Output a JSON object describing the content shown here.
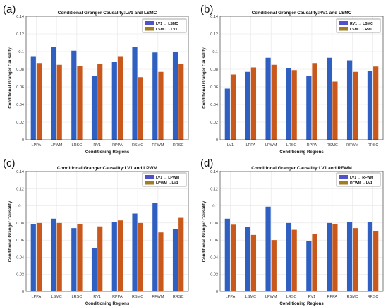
{
  "figure": {
    "colors": {
      "series1": "#2f5fc0",
      "series2": "#c8581c",
      "series1_legend": "#5151c9",
      "series2_legend": "#9e7d24",
      "grid": "#e6e6e6",
      "axis": "#222222"
    }
  },
  "chart_data": [
    {
      "id": "a",
      "panel_label": "(a)",
      "type": "bar",
      "title": "Conditional Granger Causality:LV1 and LSMC",
      "xlabel": "Conditioning Regions",
      "ylabel": "Conditional Granger Causality",
      "ylim": [
        0,
        0.14
      ],
      "yticks": [
        "0",
        "0.02",
        "0.04",
        "0.06",
        "0.08",
        "0.1",
        "0.12",
        "0.14"
      ],
      "grid": true,
      "legend_position": "top-right",
      "categories": [
        "LPPA",
        "LPWM",
        "LRSC",
        "RV1",
        "RPPA",
        "RSMC",
        "RFWM",
        "RRSC"
      ],
      "series": [
        {
          "name": "LV1 → LSMC",
          "values": [
            0.094,
            0.105,
            0.101,
            0.072,
            0.088,
            0.105,
            0.099,
            0.1
          ]
        },
        {
          "name": "LSMC →LV1",
          "values": [
            0.087,
            0.085,
            0.084,
            0.086,
            0.094,
            0.071,
            0.077,
            0.086
          ]
        }
      ]
    },
    {
      "id": "b",
      "panel_label": "(b)",
      "type": "bar",
      "title": "Conditional Granger Causality:RV1 and LSMC",
      "xlabel": "Conditioning Regions",
      "ylabel": "Conditional Granger Causality",
      "ylim": [
        0,
        0.14
      ],
      "yticks": [
        "0",
        "0.02",
        "0.04",
        "0.06",
        "0.08",
        "0.1",
        "0.12",
        "0.14"
      ],
      "grid": true,
      "legend_position": "top-right",
      "categories": [
        "LV1",
        "LPPA",
        "LPWM",
        "LRSC",
        "RPPA",
        "RSMC",
        "RFWM",
        "RRSC"
      ],
      "series": [
        {
          "name": "RV1 → LSMC",
          "values": [
            0.058,
            0.077,
            0.093,
            0.081,
            0.072,
            0.093,
            0.09,
            0.078
          ]
        },
        {
          "name": "LSMC →RV1",
          "values": [
            0.074,
            0.082,
            0.085,
            0.079,
            0.087,
            0.066,
            0.077,
            0.083
          ]
        }
      ]
    },
    {
      "id": "c",
      "panel_label": "(c)",
      "type": "bar",
      "title": "Conditional Granger Causality:LV1 and LPWM",
      "xlabel": "Conditioning Regions",
      "ylabel": "Conditional Granger Causality",
      "ylim": [
        0,
        0.14
      ],
      "yticks": [
        "0",
        "0.02",
        "0.04",
        "0.06",
        "0.08",
        "0.1",
        "0.12",
        "0.14"
      ],
      "grid": true,
      "legend_position": "top-right",
      "categories": [
        "LPPA",
        "LSMC",
        "LRSC",
        "RV1",
        "RPPA",
        "RSMC",
        "RFWM",
        "RRSC"
      ],
      "series": [
        {
          "name": "LV1 → LPWM",
          "values": [
            0.079,
            0.085,
            0.074,
            0.051,
            0.081,
            0.091,
            0.103,
            0.073
          ]
        },
        {
          "name": "LPWM →LV1",
          "values": [
            0.08,
            0.08,
            0.079,
            0.076,
            0.083,
            0.08,
            0.069,
            0.086
          ]
        }
      ]
    },
    {
      "id": "d",
      "panel_label": "(d)",
      "type": "bar",
      "title": "Conditional Granger Causality:LV1 and RFWM",
      "xlabel": "Conditioning Regions",
      "ylabel": "Conditional Granger Causality",
      "ylim": [
        0,
        0.14
      ],
      "yticks": [
        "0",
        "0.02",
        "0.04",
        "0.06",
        "0.08",
        "0.1",
        "0.12",
        "0.14"
      ],
      "grid": true,
      "legend_position": "top-right",
      "categories": [
        "LPPA",
        "LSMC",
        "LPWM",
        "LRSC",
        "RV1",
        "RPPA",
        "RSMC",
        "RRSC"
      ],
      "series": [
        {
          "name": "LV1 → RFWM",
          "values": [
            0.085,
            0.075,
            0.099,
            0.08,
            0.059,
            0.08,
            0.081,
            0.081
          ]
        },
        {
          "name": "RFWM →LV1",
          "values": [
            0.078,
            0.066,
            0.06,
            0.072,
            0.067,
            0.079,
            0.074,
            0.07
          ]
        }
      ]
    }
  ]
}
